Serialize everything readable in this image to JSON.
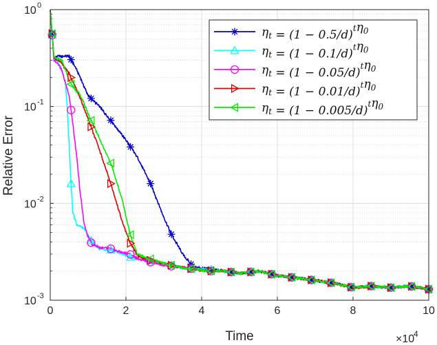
{
  "chart_data": {
    "type": "line",
    "title": "",
    "xlabel": "Time",
    "ylabel": "Relative Error",
    "x_multiplier_label": "×10",
    "x_multiplier_exponent": "4",
    "xlim": [
      0,
      10
    ],
    "ylim": [
      0.001,
      1
    ],
    "yscale": "log",
    "grid": true,
    "legend_position": "top-right",
    "x_ticks": [
      {
        "value": 0,
        "label": "0"
      },
      {
        "value": 2,
        "label": "2"
      },
      {
        "value": 4,
        "label": "4"
      },
      {
        "value": 6,
        "label": "6"
      },
      {
        "value": 8,
        "label": "8"
      },
      {
        "value": 10,
        "label": "10"
      }
    ],
    "y_ticks": [
      {
        "value": 0.001,
        "base": "10",
        "exp": "-3"
      },
      {
        "value": 0.01,
        "base": "10",
        "exp": "-2"
      },
      {
        "value": 0.1,
        "base": "10",
        "exp": "-1"
      },
      {
        "value": 1,
        "base": "10",
        "exp": "0"
      }
    ],
    "series": [
      {
        "name": "ηt = (1 − 0.5/d)^t η0",
        "legend_prefix": "η",
        "legend_sub": "t",
        "legend_mid": " = (1 − 0.5/d)",
        "legend_sup": "t",
        "legend_tail": "η",
        "legend_tail_sub": "0",
        "color": "#0000cc",
        "marker": "asterisk",
        "x": [
          0,
          0.1,
          0.2,
          0.3,
          0.4,
          0.5,
          0.7,
          1.0,
          1.3,
          1.6,
          2.0,
          2.3,
          2.65,
          3.0,
          3.2,
          3.5,
          3.7,
          3.8,
          4.2,
          4.6,
          5.0,
          5.5,
          6.0,
          6.5,
          7.0,
          7.5,
          8.0,
          8.5,
          9.0,
          9.5,
          10.0
        ],
        "values": [
          1.0,
          0.32,
          0.33,
          0.33,
          0.33,
          0.33,
          0.24,
          0.13,
          0.1,
          0.072,
          0.045,
          0.03,
          0.016,
          0.0072,
          0.0048,
          0.003,
          0.0024,
          0.0022,
          0.0021,
          0.002,
          0.0019,
          0.002,
          0.0018,
          0.0017,
          0.0016,
          0.0015,
          0.00135,
          0.0014,
          0.00135,
          0.0014,
          0.0013
        ],
        "marker_x": [
          0.05,
          0.55,
          1.08,
          1.6,
          2.12,
          2.65,
          3.2,
          3.72,
          4.25,
          4.78,
          5.3,
          5.85,
          6.38,
          6.9,
          7.42,
          7.95,
          8.48,
          9.0,
          9.55,
          10.05
        ]
      },
      {
        "name": "ηt = (1 − 0.1/d)^t η0",
        "legend_prefix": "η",
        "legend_sub": "t",
        "legend_mid": " = (1 − 0.1/d)",
        "legend_sup": "t",
        "legend_tail": "η",
        "legend_tail_sub": "0",
        "color": "#00ffff",
        "marker": "triangle-up",
        "x": [
          0,
          0.1,
          0.2,
          0.3,
          0.4,
          0.45,
          0.5,
          0.55,
          0.6,
          0.7,
          0.9,
          1.1,
          1.3,
          1.6,
          1.9,
          2.1,
          2.4,
          2.8,
          3.2,
          3.6,
          4.0,
          4.5,
          5.0,
          5.5,
          6.0,
          6.5,
          7.0,
          7.5,
          8.0,
          8.5,
          9.0,
          9.5,
          10.0
        ],
        "values": [
          1.0,
          0.3,
          0.29,
          0.25,
          0.17,
          0.1,
          0.04,
          0.016,
          0.008,
          0.006,
          0.0055,
          0.004,
          0.0034,
          0.0033,
          0.003,
          0.0028,
          0.0026,
          0.0025,
          0.0023,
          0.0021,
          0.0021,
          0.002,
          0.0019,
          0.002,
          0.0018,
          0.0017,
          0.0016,
          0.0015,
          0.00135,
          0.0014,
          0.00135,
          0.0014,
          0.0013
        ],
        "marker_x": [
          0.05,
          0.55,
          1.08,
          1.6,
          2.12,
          2.65,
          3.2,
          3.72,
          4.25,
          4.78,
          5.3,
          5.85,
          6.38,
          6.9,
          7.42,
          7.95,
          8.48,
          9.0,
          9.55,
          10.05
        ]
      },
      {
        "name": "ηt = (1 − 0.05/d)^t η0",
        "legend_prefix": "η",
        "legend_sub": "t",
        "legend_mid": " = (1 − 0.05/d)",
        "legend_sup": "t",
        "legend_tail": "η",
        "legend_tail_sub": "0",
        "color": "#ff00ff",
        "marker": "circle",
        "x": [
          0,
          0.1,
          0.2,
          0.3,
          0.5,
          0.6,
          0.7,
          0.8,
          0.9,
          1.0,
          1.1,
          1.3,
          1.6,
          1.9,
          2.1,
          2.3,
          2.6,
          3.0,
          3.4,
          3.8,
          4.2,
          4.6,
          5.0,
          5.5,
          6.0,
          6.5,
          7.0,
          7.5,
          8.0,
          8.5,
          9.0,
          9.5,
          10.0
        ],
        "values": [
          1.0,
          0.3,
          0.28,
          0.24,
          0.13,
          0.065,
          0.03,
          0.012,
          0.006,
          0.0045,
          0.0038,
          0.0035,
          0.0034,
          0.0031,
          0.003,
          0.0027,
          0.0025,
          0.0023,
          0.0022,
          0.0021,
          0.002,
          0.002,
          0.0019,
          0.002,
          0.0018,
          0.0017,
          0.0016,
          0.0015,
          0.00135,
          0.0014,
          0.00135,
          0.0014,
          0.0013
        ],
        "marker_x": [
          0.05,
          0.55,
          1.08,
          1.6,
          2.12,
          2.65,
          3.2,
          3.72,
          4.25,
          4.78,
          5.3,
          5.85,
          6.38,
          6.9,
          7.42,
          7.95,
          8.48,
          9.0,
          9.55,
          10.05
        ]
      },
      {
        "name": "ηt = (1 − 0.01/d)^t η0",
        "legend_prefix": "η",
        "legend_sub": "t",
        "legend_mid": " = (1 − 0.01/d)",
        "legend_sup": "t",
        "legend_tail": "η",
        "legend_tail_sub": "0",
        "color": "#dd0000",
        "marker": "triangle-right",
        "x": [
          0,
          0.1,
          0.3,
          0.5,
          0.8,
          1.0,
          1.3,
          1.6,
          1.9,
          2.1,
          2.3,
          2.6,
          3.0,
          3.4,
          3.8,
          4.2,
          4.6,
          5.0,
          5.5,
          6.0,
          6.5,
          7.0,
          7.5,
          8.0,
          8.5,
          9.0,
          9.5,
          10.0
        ],
        "values": [
          1.0,
          0.32,
          0.28,
          0.22,
          0.12,
          0.075,
          0.036,
          0.016,
          0.0065,
          0.004,
          0.0029,
          0.0026,
          0.0024,
          0.0022,
          0.0021,
          0.002,
          0.002,
          0.0019,
          0.002,
          0.0018,
          0.0017,
          0.0016,
          0.0015,
          0.00135,
          0.0014,
          0.00135,
          0.0014,
          0.0013
        ],
        "marker_x": [
          0.05,
          0.55,
          1.08,
          1.6,
          2.12,
          2.65,
          3.2,
          3.72,
          4.25,
          4.78,
          5.3,
          5.85,
          6.38,
          6.9,
          7.42,
          7.95,
          8.48,
          9.0,
          9.55,
          10.05
        ]
      },
      {
        "name": "ηt = (1 − 0.005/d)^t η0",
        "legend_prefix": "η",
        "legend_sub": "t",
        "legend_mid": " = (1 − 0.005/d)",
        "legend_sup": "t",
        "legend_tail": "η",
        "legend_tail_sub": "0",
        "color": "#00ee00",
        "marker": "triangle-left",
        "x": [
          0,
          0.1,
          0.3,
          0.55,
          0.8,
          1.05,
          1.3,
          1.6,
          1.9,
          2.1,
          2.3,
          2.6,
          3.0,
          3.4,
          3.8,
          4.2,
          4.6,
          5.0,
          5.5,
          6.0,
          6.5,
          7.0,
          7.5,
          8.0,
          8.5,
          9.0,
          9.5,
          10.0
        ],
        "values": [
          1.0,
          0.32,
          0.3,
          0.17,
          0.13,
          0.076,
          0.047,
          0.026,
          0.011,
          0.005,
          0.003,
          0.0027,
          0.0024,
          0.0022,
          0.0021,
          0.002,
          0.002,
          0.0019,
          0.002,
          0.0018,
          0.0017,
          0.0016,
          0.0015,
          0.00135,
          0.0014,
          0.00135,
          0.0014,
          0.0013
        ],
        "marker_x": [
          0.05,
          0.55,
          1.08,
          1.6,
          2.12,
          2.65,
          3.2,
          3.72,
          4.25,
          4.78,
          5.3,
          5.85,
          6.38,
          6.9,
          7.42,
          7.95,
          8.48,
          9.0,
          9.55,
          10.05
        ]
      }
    ]
  }
}
